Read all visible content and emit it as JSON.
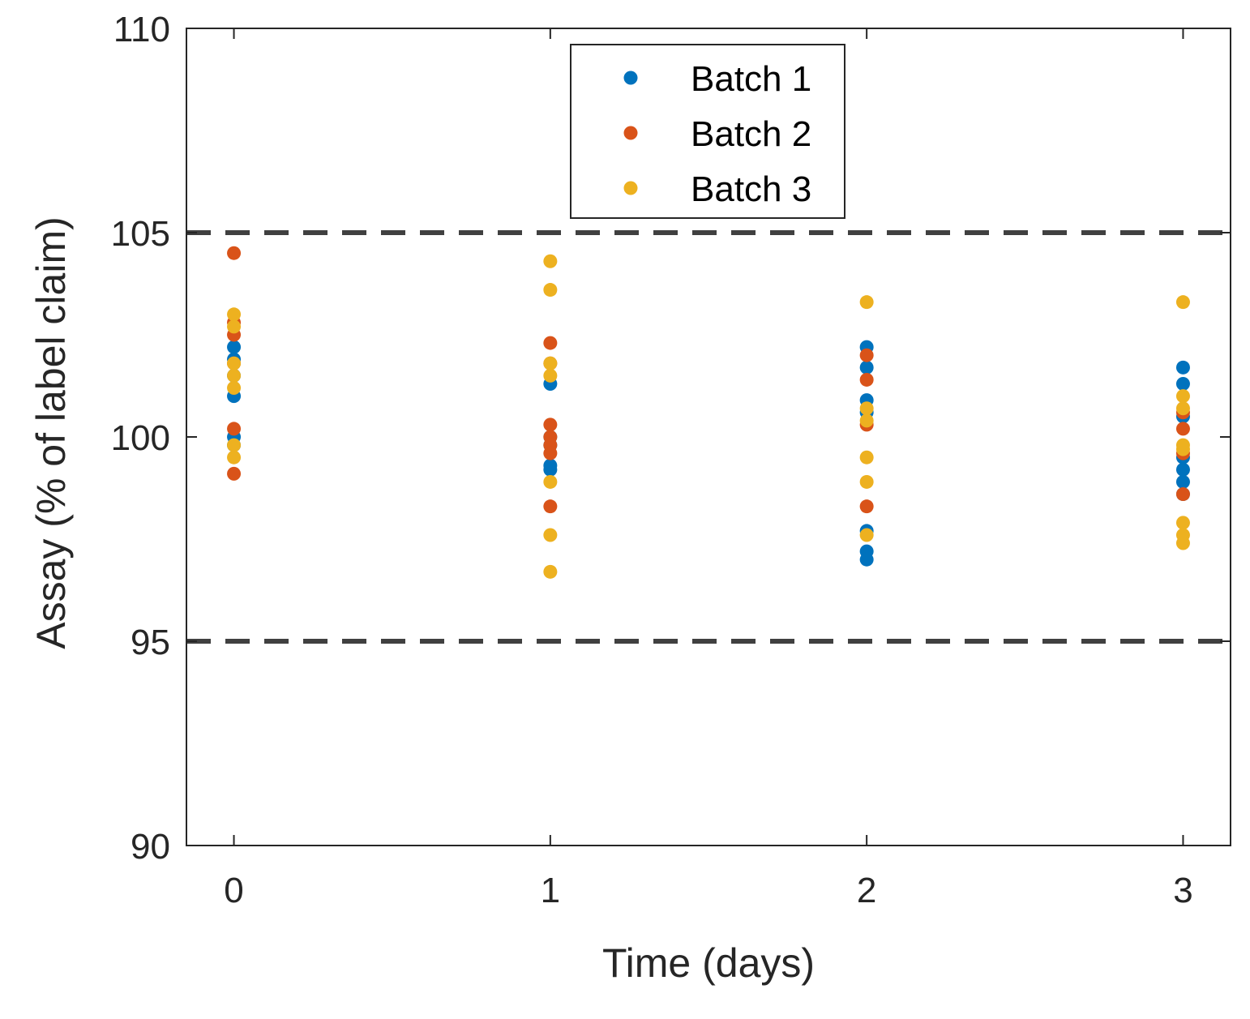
{
  "chart_data": {
    "type": "scatter",
    "title": "",
    "xlabel": "Time (days)",
    "ylabel": "Assay (% of label claim)",
    "xlim": [
      -0.15,
      3.15
    ],
    "ylim": [
      90,
      110
    ],
    "xticks": [
      0,
      1,
      2,
      3
    ],
    "yticks": [
      90,
      95,
      100,
      105,
      110
    ],
    "grid": false,
    "legend_position": "top-center",
    "reference_lines": [
      {
        "y": 105,
        "style": "dashed",
        "color": "#404040"
      },
      {
        "y": 95,
        "style": "dashed",
        "color": "#404040"
      }
    ],
    "series": [
      {
        "name": "Batch 1",
        "color": "#0072BD",
        "points": [
          [
            0,
            102.2
          ],
          [
            0,
            101.9
          ],
          [
            0,
            101.5
          ],
          [
            0,
            101.0
          ],
          [
            0,
            100.0
          ],
          [
            0,
            99.8
          ],
          [
            1,
            101.3
          ],
          [
            1,
            100.0
          ],
          [
            1,
            99.8
          ],
          [
            1,
            99.3
          ],
          [
            1,
            99.2
          ],
          [
            2,
            102.2
          ],
          [
            2,
            101.7
          ],
          [
            2,
            100.9
          ],
          [
            2,
            100.6
          ],
          [
            2,
            97.7
          ],
          [
            2,
            97.2
          ],
          [
            2,
            97.0
          ],
          [
            3,
            101.7
          ],
          [
            3,
            101.3
          ],
          [
            3,
            100.5
          ],
          [
            3,
            99.5
          ],
          [
            3,
            99.2
          ],
          [
            3,
            98.9
          ],
          [
            3,
            98.6
          ]
        ]
      },
      {
        "name": "Batch 2",
        "color": "#D95319",
        "points": [
          [
            0,
            104.5
          ],
          [
            0,
            102.8
          ],
          [
            0,
            102.5
          ],
          [
            0,
            101.8
          ],
          [
            0,
            100.2
          ],
          [
            0,
            99.1
          ],
          [
            1,
            102.3
          ],
          [
            1,
            101.8
          ],
          [
            1,
            100.3
          ],
          [
            1,
            100.0
          ],
          [
            1,
            99.8
          ],
          [
            1,
            99.6
          ],
          [
            1,
            98.3
          ],
          [
            2,
            102.0
          ],
          [
            2,
            101.4
          ],
          [
            2,
            100.3
          ],
          [
            2,
            98.3
          ],
          [
            3,
            100.6
          ],
          [
            3,
            100.2
          ],
          [
            3,
            99.6
          ],
          [
            3,
            98.6
          ]
        ]
      },
      {
        "name": "Batch 3",
        "color": "#EDB120",
        "points": [
          [
            0,
            103.0
          ],
          [
            0,
            102.7
          ],
          [
            0,
            101.8
          ],
          [
            0,
            101.5
          ],
          [
            0,
            101.2
          ],
          [
            0,
            99.8
          ],
          [
            0,
            99.5
          ],
          [
            1,
            104.3
          ],
          [
            1,
            103.6
          ],
          [
            1,
            101.8
          ],
          [
            1,
            101.5
          ],
          [
            1,
            98.9
          ],
          [
            1,
            97.6
          ],
          [
            1,
            96.7
          ],
          [
            2,
            103.3
          ],
          [
            2,
            100.7
          ],
          [
            2,
            100.4
          ],
          [
            2,
            99.5
          ],
          [
            2,
            98.9
          ],
          [
            2,
            97.6
          ],
          [
            3,
            103.3
          ],
          [
            3,
            101.0
          ],
          [
            3,
            100.7
          ],
          [
            3,
            99.8
          ],
          [
            3,
            99.7
          ],
          [
            3,
            97.9
          ],
          [
            3,
            97.6
          ],
          [
            3,
            97.4
          ]
        ]
      }
    ]
  }
}
